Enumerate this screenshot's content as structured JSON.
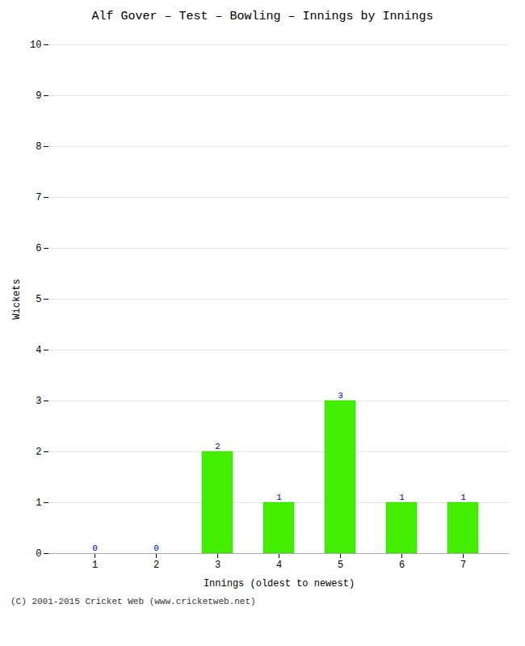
{
  "chart_data": {
    "type": "bar",
    "title": "Alf Gover – Test – Bowling – Innings by Innings",
    "xlabel": "Innings (oldest to newest)",
    "ylabel": "Wickets",
    "categories": [
      "1",
      "2",
      "3",
      "4",
      "5",
      "6",
      "7"
    ],
    "values": [
      0,
      0,
      2,
      1,
      3,
      1,
      1
    ],
    "color": "#44ee00",
    "ylim": [
      0,
      10
    ],
    "yticks": [
      0,
      1,
      2,
      3,
      4,
      5,
      6,
      7,
      8,
      9,
      10
    ],
    "grid": true,
    "data_labels": true,
    "annotations": [
      "(C) 2001-2015 Cricket Web (www.cricketweb.net)"
    ]
  }
}
